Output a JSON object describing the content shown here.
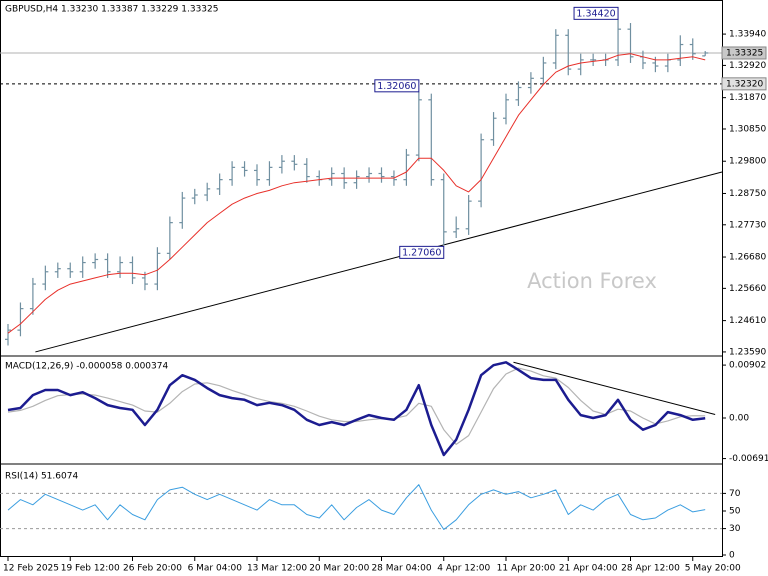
{
  "chart_data": [
    {
      "type": "ohlc",
      "title": "GBPUSD,H4 1.33230 1.33387 1.33229 1.33325",
      "watermark": "Action Forex",
      "categories": [
        "12 Feb 2025",
        null,
        null,
        null,
        null,
        "19 Feb 12:00",
        null,
        null,
        null,
        null,
        "26 Feb 20:00",
        null,
        null,
        null,
        null,
        "6 Mar 04:00",
        null,
        null,
        null,
        null,
        "13 Mar 12:00",
        null,
        null,
        null,
        null,
        "20 Mar 20:00",
        null,
        null,
        null,
        null,
        "28 Mar 04:00",
        null,
        null,
        null,
        null,
        "4 Apr 12:00",
        null,
        null,
        null,
        null,
        "11 Apr 20:00",
        null,
        null,
        null,
        null,
        "21 Apr 04:00",
        null,
        null,
        null,
        null,
        "28 Apr 12:00",
        null,
        null,
        null,
        null,
        "5 May 20:00",
        null
      ],
      "color": "#6f8fa0",
      "open": [
        1.24,
        1.243,
        1.25,
        1.258,
        1.262,
        1.263,
        1.262,
        1.265,
        1.266,
        1.262,
        1.265,
        1.26,
        1.258,
        1.268,
        1.278,
        1.286,
        1.287,
        1.289,
        1.292,
        1.296,
        1.295,
        1.292,
        1.296,
        1.298,
        1.297,
        1.293,
        1.292,
        1.294,
        1.291,
        1.293,
        1.294,
        1.293,
        1.292,
        1.3,
        1.318,
        1.292,
        1.275,
        1.276,
        1.285,
        1.305,
        1.312,
        1.318,
        1.322,
        1.325,
        1.33,
        1.339,
        1.328,
        1.331,
        1.331,
        1.331,
        1.341,
        1.332,
        1.33,
        1.329,
        1.331,
        1.336,
        1.3323
      ],
      "high": [
        1.245,
        1.252,
        1.26,
        1.264,
        1.265,
        1.265,
        1.267,
        1.268,
        1.268,
        1.267,
        1.267,
        1.262,
        1.27,
        1.28,
        1.288,
        1.289,
        1.291,
        1.294,
        1.298,
        1.298,
        1.297,
        1.298,
        1.3,
        1.3,
        1.299,
        1.295,
        1.296,
        1.296,
        1.295,
        1.296,
        1.296,
        1.295,
        1.302,
        1.3206,
        1.32,
        1.294,
        1.28,
        1.287,
        1.307,
        1.314,
        1.32,
        1.324,
        1.327,
        1.332,
        1.341,
        1.341,
        1.333,
        1.333,
        1.333,
        1.3442,
        1.343,
        1.334,
        1.332,
        1.333,
        1.339,
        1.338,
        1.33387
      ],
      "low": [
        1.238,
        1.241,
        1.248,
        1.256,
        1.26,
        1.26,
        1.26,
        1.263,
        1.26,
        1.26,
        1.258,
        1.256,
        1.256,
        1.266,
        1.276,
        1.284,
        1.285,
        1.287,
        1.29,
        1.293,
        1.29,
        1.29,
        1.294,
        1.295,
        1.291,
        1.29,
        1.29,
        1.289,
        1.289,
        1.291,
        1.291,
        1.29,
        1.29,
        1.298,
        1.29,
        1.2706,
        1.273,
        1.274,
        1.283,
        1.303,
        1.31,
        1.316,
        1.32,
        1.323,
        1.328,
        1.326,
        1.326,
        1.329,
        1.329,
        1.329,
        1.33,
        1.328,
        1.327,
        1.327,
        1.329,
        1.331,
        1.33229
      ],
      "close": [
        1.243,
        1.25,
        1.258,
        1.262,
        1.263,
        1.262,
        1.265,
        1.266,
        1.262,
        1.265,
        1.26,
        1.258,
        1.268,
        1.278,
        1.286,
        1.287,
        1.289,
        1.292,
        1.296,
        1.295,
        1.292,
        1.296,
        1.298,
        1.297,
        1.293,
        1.292,
        1.294,
        1.291,
        1.293,
        1.294,
        1.293,
        1.292,
        1.3,
        1.318,
        1.292,
        1.275,
        1.276,
        1.285,
        1.305,
        1.312,
        1.318,
        1.322,
        1.325,
        1.33,
        1.339,
        1.328,
        1.331,
        1.331,
        1.331,
        1.341,
        1.332,
        1.33,
        1.329,
        1.331,
        1.336,
        1.333,
        1.33325
      ],
      "ma": {
        "color": "#e8302a",
        "values": [
          1.242,
          1.245,
          1.249,
          1.253,
          1.256,
          1.258,
          1.259,
          1.26,
          1.261,
          1.2615,
          1.2615,
          1.261,
          1.2625,
          1.266,
          1.27,
          1.274,
          1.278,
          1.281,
          1.284,
          1.286,
          1.2875,
          1.2885,
          1.29,
          1.291,
          1.2915,
          1.292,
          1.2925,
          1.2925,
          1.2925,
          1.2925,
          1.2925,
          1.2925,
          1.2945,
          1.299,
          1.299,
          1.295,
          1.29,
          1.288,
          1.292,
          1.299,
          1.306,
          1.313,
          1.318,
          1.323,
          1.327,
          1.329,
          1.33,
          1.3305,
          1.331,
          1.3325,
          1.333,
          1.332,
          1.331,
          1.331,
          1.3315,
          1.332,
          1.331
        ]
      },
      "trendline": {
        "x": [
          2.2,
          57.4
        ],
        "y": [
          1.2359,
          1.2945
        ]
      },
      "annotations": [
        {
          "at": 49,
          "value": 1.3442,
          "label": "1.34420"
        },
        {
          "at": 33,
          "value": 1.3206,
          "label": "1.32060"
        },
        {
          "at": 35,
          "value": 1.2706,
          "label": "1.27060"
        }
      ],
      "price_lines": [
        {
          "value": 1.33325,
          "style": "solid"
        },
        {
          "value": 1.3232,
          "label": "1.32320",
          "style": "dashed"
        }
      ],
      "ylim": [
        1.2349,
        1.3505
      ],
      "yticks": [
        {
          "value": 1.2359,
          "label": "1.23590"
        },
        {
          "value": 1.2461,
          "label": "1.24610"
        },
        {
          "value": 1.2566,
          "label": "1.25660"
        },
        {
          "value": 1.2668,
          "label": "1.26680"
        },
        {
          "value": 1.2773,
          "label": "1.27730"
        },
        {
          "value": 1.2875,
          "label": "1.28750"
        },
        {
          "value": 1.298,
          "label": "1.29800"
        },
        {
          "value": 1.3085,
          "label": "1.30850"
        },
        {
          "value": 1.3187,
          "label": "1.31870"
        },
        {
          "value": 1.3292,
          "label": "1.32920"
        },
        {
          "value": 1.3394,
          "label": "1.33940"
        }
      ]
    },
    {
      "type": "line",
      "title": "MACD(12,26,9) -0.000058 0.000374",
      "series": [
        {
          "color": "#1c1c90",
          "width": 2.5,
          "values": [
            0.00136,
            0.0017,
            0.0039,
            0.00477,
            0.00477,
            0.0039,
            0.0044,
            0.0034,
            0.0022,
            0.0017,
            0.0014,
            -0.0012,
            0.0014,
            0.0056,
            0.0073,
            0.0065,
            0.0051,
            0.0039,
            0.0034,
            0.0031,
            0.0022,
            0.0026,
            0.0022,
            0.0014,
            -0.0003,
            -0.0012,
            -0.0007,
            -0.0012,
            -0.0003,
            0.0005,
            0,
            -0.0003,
            0.0014,
            0.0056,
            -0.0012,
            -0.0063,
            -0.0037,
            0.0014,
            0.0073,
            0.009,
            0.0095,
            0.0082,
            0.0068,
            0.0065,
            0.0065,
            0.0031,
            0.0005,
            0,
            0.0005,
            0.0031,
            -0.0003,
            -0.002,
            -0.0012,
            0.001,
            0.0005,
            -0.0003,
            -5.8e-05
          ]
        },
        {
          "color": "#b4b4b4",
          "width": 1.2,
          "values": [
            0.001,
            0.0013,
            0.002,
            0.003,
            0.0038,
            0.004,
            0.0041,
            0.0039,
            0.0034,
            0.0028,
            0.0022,
            0.0012,
            0.001,
            0.0025,
            0.0045,
            0.0058,
            0.006,
            0.0055,
            0.0047,
            0.004,
            0.0033,
            0.0028,
            0.0025,
            0.002,
            0.0012,
            0.0003,
            -0.0003,
            -0.0006,
            -0.0006,
            -0.0003,
            -0.0001,
            -0.0001,
            0.0004,
            0.0025,
            0.002,
            -0.002,
            -0.0045,
            -0.003,
            0.001,
            0.005,
            0.0075,
            0.0085,
            0.008,
            0.0072,
            0.0068,
            0.0052,
            0.003,
            0.0012,
            0.0006,
            0.0015,
            0.0012,
            0.0,
            -0.001,
            -0.0005,
            0.0002,
            0.0004,
            0.000374
          ]
        }
      ],
      "trendline": {
        "x": [
          40.6,
          56.8
        ],
        "y": [
          0.0095,
          0.0006
        ]
      },
      "ylim": [
        -0.0075,
        0.0104
      ],
      "yticks": [
        0.00902,
        {
          "value": 0,
          "label": "0.00"
        },
        -0.006915
      ]
    },
    {
      "type": "line",
      "title": "RSI(14) 51.6074",
      "series": [
        {
          "color": "#3b9ee0",
          "width": 1,
          "values": [
            51,
            63,
            57,
            69,
            63,
            57,
            51,
            57,
            40,
            57,
            46,
            40,
            63,
            74,
            77,
            69,
            63,
            69,
            63,
            57,
            51,
            63,
            57,
            57,
            46,
            42,
            57,
            40,
            54,
            63,
            51,
            46,
            65,
            80,
            51,
            29,
            40,
            57,
            69,
            74,
            69,
            72,
            65,
            69,
            74,
            46,
            57,
            51,
            63,
            69,
            46,
            40,
            42,
            51,
            57,
            49,
            51.6074
          ]
        }
      ],
      "levels": [
        70,
        30
      ],
      "ylim": [
        0,
        100
      ],
      "yticks": [
        70,
        50,
        30,
        0
      ]
    }
  ]
}
